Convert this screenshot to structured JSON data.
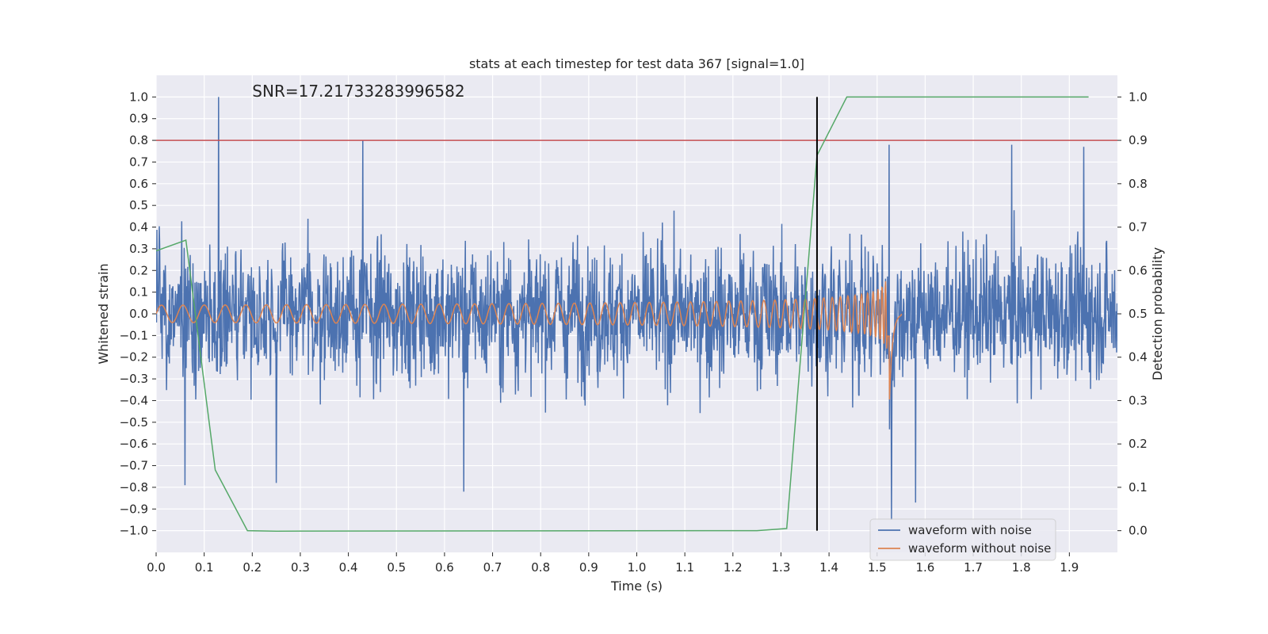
{
  "chart_data": {
    "type": "line",
    "title": "stats at each timestep for test data 367 [signal=1.0]",
    "xlabel": "Time (s)",
    "ylabel": "Whitened strain",
    "ylabel_right": "Detection probability",
    "annotation": "SNR=17.21733283996582",
    "xlim": [
      0.0,
      2.0
    ],
    "ylim": [
      -1.1,
      1.1
    ],
    "ylim_right": [
      -0.05,
      1.05
    ],
    "xticks": [
      0.0,
      0.1,
      0.2,
      0.3,
      0.4,
      0.5,
      0.6,
      0.7,
      0.8,
      0.9,
      1.0,
      1.1,
      1.2,
      1.3,
      1.4,
      1.5,
      1.6,
      1.7,
      1.8,
      1.9
    ],
    "xtick_labels": [
      "0.0",
      "0.1",
      "0.2",
      "0.3",
      "0.4",
      "0.5",
      "0.6",
      "0.7",
      "0.8",
      "0.9",
      "1.0",
      "1.1",
      "1.2",
      "1.3",
      "1.4",
      "1.5",
      "1.6",
      "1.7",
      "1.8",
      "1.9"
    ],
    "yticks": [
      1.0,
      0.9,
      0.8,
      0.7,
      0.6,
      0.5,
      0.4,
      0.3,
      0.2,
      0.1,
      0.0,
      -0.1,
      -0.2,
      -0.3,
      -0.4,
      -0.5,
      -0.6,
      -0.7,
      -0.8,
      -0.9,
      -1.0
    ],
    "ytick_labels": [
      "1.0",
      "0.9",
      "0.8",
      "0.7",
      "0.6",
      "0.5",
      "0.4",
      "0.3",
      "0.2",
      "0.1",
      "0.0",
      "−0.1",
      "−0.2",
      "−0.3",
      "−0.4",
      "−0.5",
      "−0.6",
      "−0.7",
      "−0.8",
      "−0.9",
      "−1.0"
    ],
    "yticks_right": [
      1.0,
      0.9,
      0.8,
      0.7,
      0.6,
      0.5,
      0.4,
      0.3,
      0.2,
      0.1,
      0.0
    ],
    "ytick_labels_right": [
      "1.0",
      "0.9",
      "0.8",
      "0.7",
      "0.6",
      "0.5",
      "0.4",
      "0.3",
      "0.2",
      "0.1",
      "0.0"
    ],
    "grid": true,
    "legend_position": "lower-right",
    "colors": {
      "background": "#eaeaf2",
      "grid": "#ffffff",
      "noise": "#4c72b0",
      "clean": "#dd8452",
      "probability": "#55a868",
      "threshold": "#c44e52",
      "detection_marker": "#000000"
    },
    "series": [
      {
        "name": "waveform with noise",
        "style": "dense noisy trace",
        "peaks": [
          {
            "x": 0.13,
            "y": 1.0
          },
          {
            "x": 0.43,
            "y": 0.8
          },
          {
            "x": 0.64,
            "y": -0.82
          },
          {
            "x": 1.525,
            "y": 0.78
          },
          {
            "x": 1.53,
            "y": -0.95
          },
          {
            "x": 1.58,
            "y": -0.87
          },
          {
            "x": 1.78,
            "y": 0.78
          },
          {
            "x": 1.93,
            "y": 0.77
          },
          {
            "x": 0.25,
            "y": -0.78
          },
          {
            "x": 0.06,
            "y": -0.79
          }
        ],
        "x_range": [
          0.0,
          2.0
        ]
      },
      {
        "name": "waveform without noise",
        "style": "chirp",
        "x_range": [
          0.0,
          1.55
        ],
        "start_amplitude": 0.04,
        "peak_amplitude": 0.78,
        "merger_time": 1.525,
        "start_period": 0.045
      },
      {
        "name": "Detection probability",
        "axis": "right",
        "x": [
          0.0,
          0.062,
          0.123,
          0.19,
          0.25,
          1.25,
          1.312,
          1.375,
          1.437,
          1.5,
          1.94
        ],
        "y": [
          0.645,
          0.67,
          0.14,
          0.0,
          -0.001,
          0.0,
          0.005,
          0.865,
          1.0,
          1.0,
          1.0
        ]
      }
    ],
    "threshold_line": {
      "y": 0.8
    },
    "detection_marker": {
      "x": 1.375,
      "y_range": [
        -1.0,
        1.0
      ]
    }
  }
}
